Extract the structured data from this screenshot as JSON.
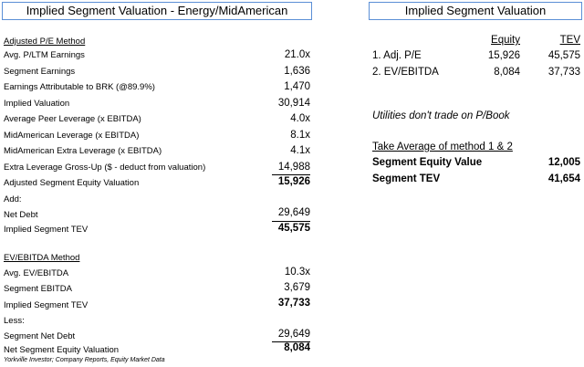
{
  "left_title": "Implied Segment Valuation - Energy/MidAmerican",
  "right_title": "Implied Segment Valuation",
  "pe_method": {
    "heading": "Adjusted P/E Method",
    "rows": [
      {
        "label": "Avg. P/LTM Earnings",
        "value": "21.0x"
      },
      {
        "label": "Segment Earnings",
        "value": "1,636"
      },
      {
        "label": "Earnings Attributable to BRK (@89.9%)",
        "value": "1,470"
      },
      {
        "label": "Implied Valuation",
        "value": "30,914"
      },
      {
        "label": "Average Peer Leverage (x EBITDA)",
        "value": "4.0x"
      },
      {
        "label": "MidAmerican Leverage (x EBITDA)",
        "value": "8.1x"
      },
      {
        "label": "MidAmerican Extra Leverage (x EBITDA)",
        "value": "4.1x"
      },
      {
        "label": "Extra Leverage Gross-Up ($ - deduct from valuation)",
        "value": "14,988"
      },
      {
        "label": "Adjusted Segment Equity Valuation",
        "value": "15,926"
      },
      {
        "label": "Add:",
        "value": ""
      },
      {
        "label": "Net Debt",
        "value": "29,649"
      },
      {
        "label": "Implied Segment TEV",
        "value": "45,575"
      }
    ]
  },
  "ebitda_method": {
    "heading": "EV/EBITDA Method",
    "rows": [
      {
        "label": "Avg. EV/EBITDA",
        "value": "10.3x"
      },
      {
        "label": "Segment EBITDA",
        "value": "3,679"
      },
      {
        "label": "Implied Segment TEV",
        "value": "37,733"
      },
      {
        "label": "Less:",
        "value": ""
      },
      {
        "label": "Segment Net Debt",
        "value": "29,649"
      },
      {
        "label": "Net Segment Equity Valuation",
        "value": "8,084"
      }
    ]
  },
  "source": "Yorkville Investor; Company Reports, Equity Market Data",
  "summary": {
    "col_equity": "Equity",
    "col_tev": "TEV",
    "rows": [
      {
        "label": "1. Adj. P/E",
        "equity": "15,926",
        "tev": "45,575"
      },
      {
        "label": "2. EV/EBITDA",
        "equity": "8,084",
        "tev": "37,733"
      }
    ],
    "note": "Utilities don't trade on P/Book",
    "average_label": "Take Average of method 1 & 2",
    "equity_value_label": "Segment Equity Value",
    "equity_value": "12,005",
    "tev_label": "Segment TEV",
    "tev_value": "41,654"
  }
}
